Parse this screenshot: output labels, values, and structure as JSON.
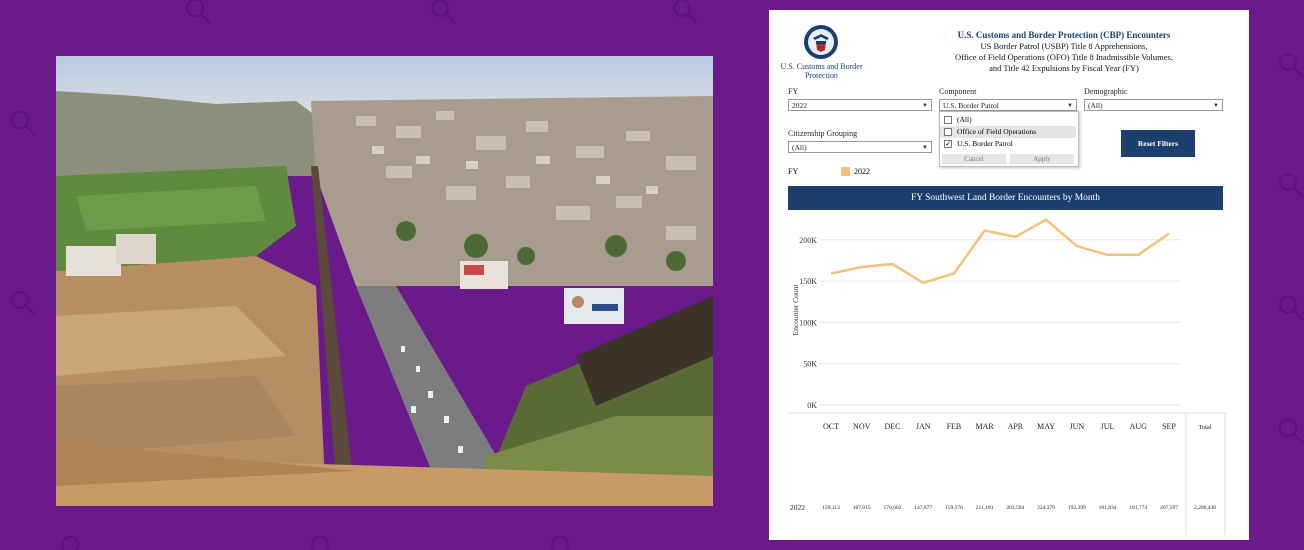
{
  "panel": {
    "logo_text": "U.S. Customs and Border Protection",
    "header": {
      "title": "U.S. Customs and Border Protection (CBP) Encounters",
      "line2": "US Border Patrol (USBP) Title 8 Apprehensions,",
      "line3": "Office of Field Operations (OFO) Title 8 Inadmissible Volumes,",
      "line4": "and Title 42 Expulsions by Fiscal Year (FY)"
    },
    "filters": {
      "fy_label": "FY",
      "fy_value": "2022",
      "component_label": "Component",
      "component_value": "U.S. Border Patrol",
      "demographic_label": "Demographic",
      "demographic_value": "(All)",
      "citizenship_label": "Citizenship Grouping",
      "citizenship_value": "(All)"
    },
    "dropdown": {
      "items": [
        {
          "label": "(All)",
          "checked": ""
        },
        {
          "label": "Office of Field Operations",
          "checked": ""
        },
        {
          "label": "U.S. Border Patrol",
          "checked": "✓"
        }
      ],
      "cancel": "Cancel",
      "apply": "Apply"
    },
    "reset_label": "Reset Filters",
    "legend": {
      "label": "FY",
      "value": "2022",
      "color": "#f3c27a"
    },
    "table": {
      "row_label": "2022",
      "values": [
        "159,113",
        "167,015",
        "170,602",
        "147,877",
        "159,170",
        "211,181",
        "203,504",
        "224,370",
        "192,399",
        "181,834",
        "181,774",
        "207,597"
      ],
      "total_label": "Total",
      "total": "2,206,436"
    }
  },
  "chart_data": {
    "type": "line",
    "title": "FY Southwest Land Border Encounters by Month",
    "ylabel": "Encounter Count",
    "categories": [
      "OCT",
      "NOV",
      "DEC",
      "JAN",
      "FEB",
      "MAR",
      "APR",
      "MAY",
      "JUN",
      "JUL",
      "AUG",
      "SEP"
    ],
    "series": [
      {
        "name": "2022",
        "values": [
          159113,
          167015,
          170602,
          147877,
          159170,
          211181,
          203504,
          224370,
          192399,
          181834,
          181774,
          207597
        ]
      }
    ],
    "yticks": [
      "0K",
      "50K",
      "100K",
      "150K",
      "200K"
    ],
    "ylim": [
      0,
      230000
    ],
    "grid": true,
    "color": "#f3c27a"
  }
}
